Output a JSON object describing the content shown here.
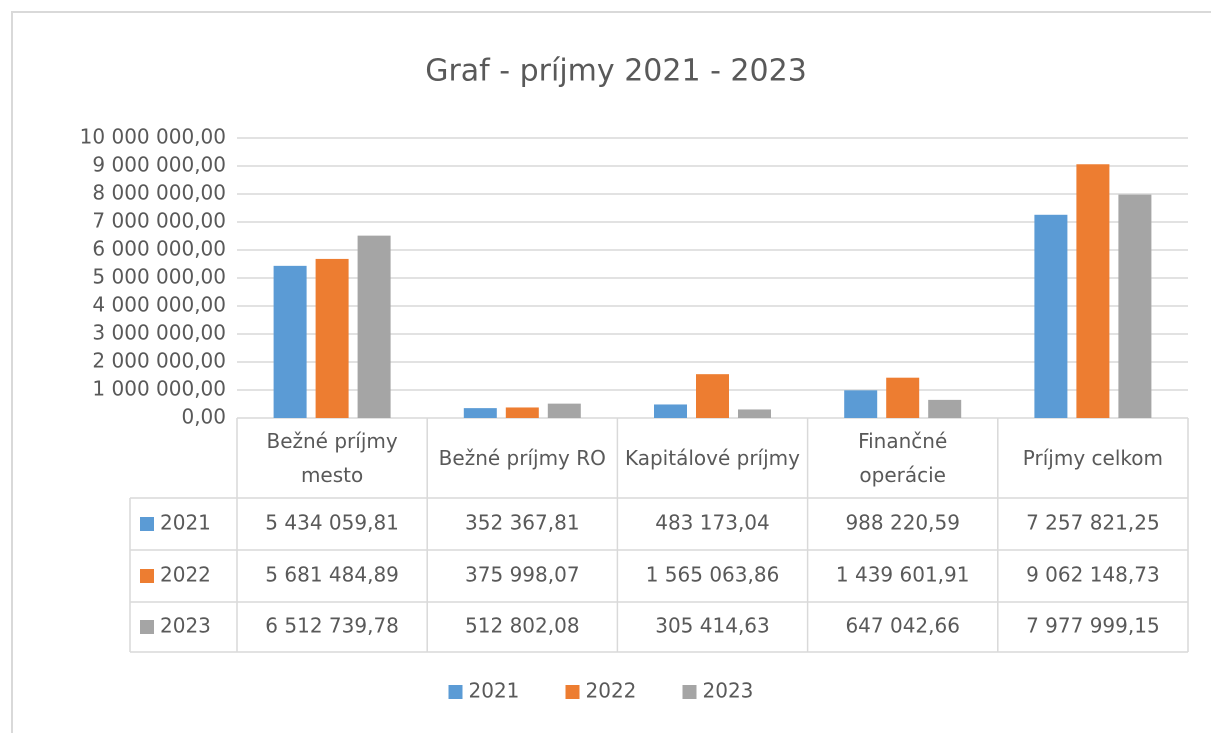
{
  "chart_data": {
    "type": "bar",
    "title": "Graf - príjmy 2021 - 2023",
    "categories": [
      "Bežné príjmy mesto",
      "Bežné príjmy RO",
      "Kapitálové príjmy",
      "Finančné operácie",
      "Príjmy celkom"
    ],
    "series": [
      {
        "name": "2021",
        "color": "#5b9bd5",
        "values": [
          5434059.81,
          352367.81,
          483173.04,
          988220.59,
          7257821.25
        ],
        "value_labels": [
          "5 434 059,81",
          "352 367,81",
          "483 173,04",
          "988 220,59",
          "7 257 821,25"
        ]
      },
      {
        "name": "2022",
        "color": "#ed7d31",
        "values": [
          5681484.89,
          375998.07,
          1565063.86,
          1439601.91,
          9062148.73
        ],
        "value_labels": [
          "5 681 484,89",
          "375 998,07",
          "1 565 063,86",
          "1 439 601,91",
          "9 062 148,73"
        ]
      },
      {
        "name": "2023",
        "color": "#a5a5a5",
        "values": [
          6512739.78,
          512802.08,
          305414.63,
          647042.66,
          7977999.15
        ],
        "value_labels": [
          "6 512 739,78",
          "512 802,08",
          "305 414,63",
          "647 042,66",
          "7 977 999,15"
        ]
      }
    ],
    "ylim": [
      0,
      10000000
    ],
    "yticks": [
      {
        "value": 0,
        "label": "0,00"
      },
      {
        "value": 1000000,
        "label": "1 000 000,00"
      },
      {
        "value": 2000000,
        "label": "2 000 000,00"
      },
      {
        "value": 3000000,
        "label": "3 000 000,00"
      },
      {
        "value": 4000000,
        "label": "4 000 000,00"
      },
      {
        "value": 5000000,
        "label": "5 000 000,00"
      },
      {
        "value": 6000000,
        "label": "6 000 000,00"
      },
      {
        "value": 7000000,
        "label": "7 000 000,00"
      },
      {
        "value": 8000000,
        "label": "8 000 000,00"
      },
      {
        "value": 9000000,
        "label": "9 000 000,00"
      },
      {
        "value": 10000000,
        "label": "10 000 000,00"
      }
    ],
    "grid": true,
    "legend": "bottom"
  }
}
